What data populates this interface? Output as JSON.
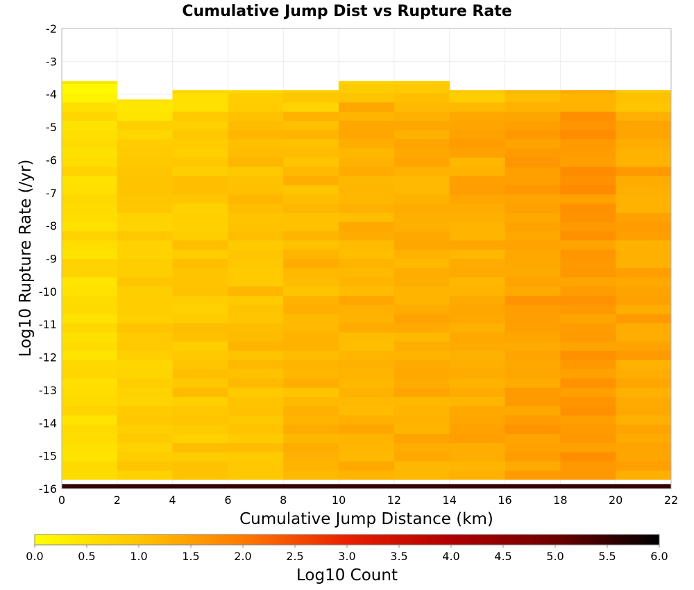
{
  "chart_data": {
    "type": "heatmap",
    "title": "Cumulative Jump Dist vs Rupture Rate",
    "xlabel": "Cumulative Jump Distance (km)",
    "ylabel": "Log10 Rupture Rate (/yr)",
    "xlim": [
      0,
      22
    ],
    "ylim": [
      -16,
      -2
    ],
    "xticks": [
      "0",
      "2",
      "4",
      "6",
      "8",
      "10",
      "12",
      "14",
      "16",
      "18",
      "20",
      "22"
    ],
    "yticks": [
      "-2",
      "-3",
      "-4",
      "-5",
      "-6",
      "-7",
      "-8",
      "-9",
      "-10",
      "-11",
      "-12",
      "-13",
      "-14",
      "-15",
      "-16"
    ],
    "x_bin_edges": [
      0,
      2,
      4,
      6,
      8,
      10,
      12,
      14,
      16,
      18,
      20,
      22
    ],
    "y_bin_start": -16,
    "y_bin_width": 0.28,
    "colorbar": {
      "label": "Log10 Count",
      "range": [
        0,
        6
      ],
      "ticks": [
        "0.0",
        "0.5",
        "1.0",
        "1.5",
        "2.0",
        "2.5",
        "3.0",
        "3.5",
        "4.0",
        "4.5",
        "5.0",
        "5.5",
        "6.0"
      ],
      "colors": [
        "#ffff00",
        "#ffc400",
        "#ff7a00",
        "#e82000",
        "#b00000",
        "#6e0000",
        "#000000"
      ]
    },
    "columns": [
      {
        "x_range": [
          0,
          2
        ],
        "log_rate_min": -15.72,
        "log_rate_max": -3.6,
        "log10_count": 0.6
      },
      {
        "x_range": [
          2,
          4
        ],
        "log_rate_min": -15.72,
        "log_rate_max": -4.16,
        "log10_count": 0.85
      },
      {
        "x_range": [
          4,
          6
        ],
        "log_rate_min": -15.72,
        "log_rate_max": -3.88,
        "log10_count": 0.95
      },
      {
        "x_range": [
          6,
          8
        ],
        "log_rate_min": -15.72,
        "log_rate_max": -3.88,
        "log10_count": 1.05
      },
      {
        "x_range": [
          8,
          10
        ],
        "log_rate_min": -15.72,
        "log_rate_max": -3.88,
        "log10_count": 1.15
      },
      {
        "x_range": [
          10,
          12
        ],
        "log_rate_min": -15.72,
        "log_rate_max": -3.6,
        "log10_count": 1.25
      },
      {
        "x_range": [
          12,
          14
        ],
        "log_rate_min": -15.72,
        "log_rate_max": -3.6,
        "log10_count": 1.28
      },
      {
        "x_range": [
          14,
          16
        ],
        "log_rate_min": -15.72,
        "log_rate_max": -3.88,
        "log10_count": 1.35
      },
      {
        "x_range": [
          16,
          18
        ],
        "log_rate_min": -15.72,
        "log_rate_max": -3.88,
        "log10_count": 1.5
      },
      {
        "x_range": [
          18,
          20
        ],
        "log_rate_min": -15.72,
        "log_rate_max": -3.88,
        "log10_count": 1.6
      },
      {
        "x_range": [
          20,
          22
        ],
        "log_rate_min": -15.72,
        "log_rate_max": -3.88,
        "log10_count": 1.4
      }
    ],
    "empty_bins": [
      {
        "x_range": [
          0,
          2
        ],
        "y_range": [
          -7.84,
          -7.56
        ]
      },
      {
        "x_range": [
          0,
          2
        ],
        "y_range": [
          -10.92,
          -10.64
        ]
      },
      {
        "x_range": [
          0,
          2
        ],
        "y_range": [
          -11.76,
          -11.48
        ]
      },
      {
        "x_range": [
          4,
          6
        ],
        "y_range": [
          -8.12,
          -7.84
        ]
      }
    ],
    "bottom_row": {
      "y_range": [
        -16,
        -15.86
      ],
      "log10_count": 5.5
    }
  }
}
